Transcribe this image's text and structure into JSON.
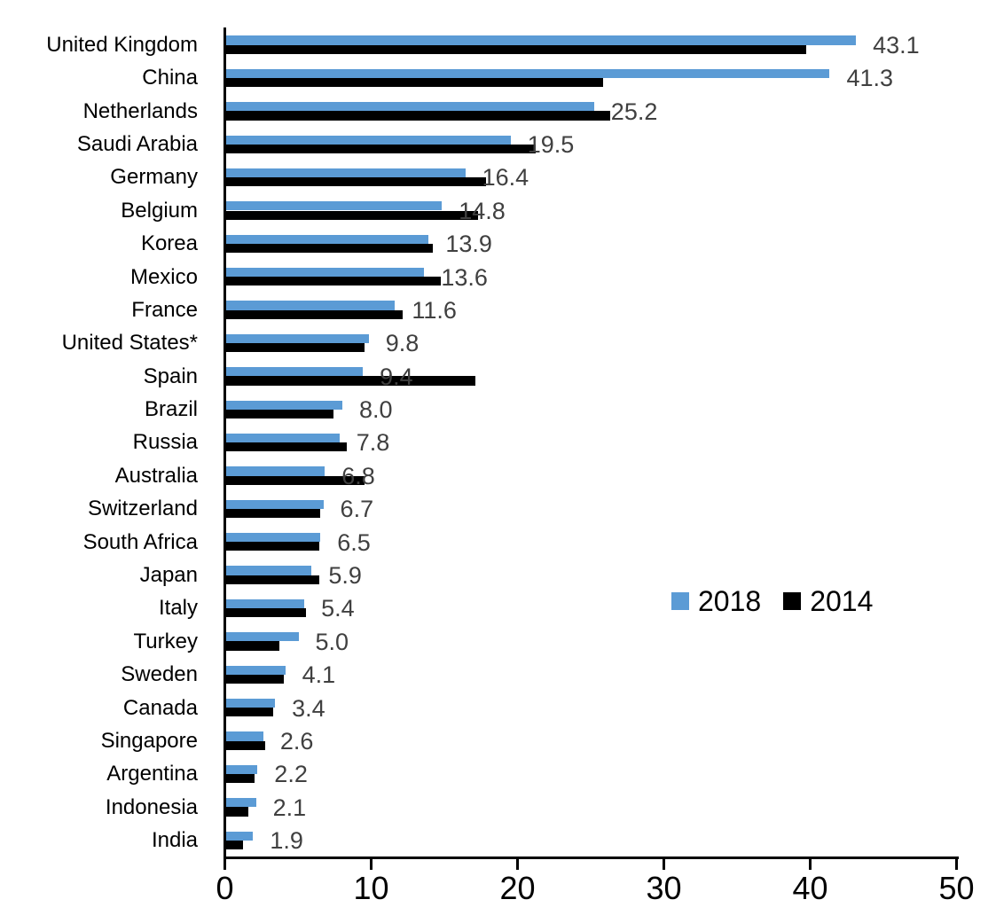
{
  "chart_data": {
    "type": "bar",
    "orientation": "horizontal",
    "title": "",
    "xlabel": "",
    "ylabel": "",
    "xlim": [
      0,
      50
    ],
    "x_ticks": [
      "0",
      "10",
      "20",
      "30",
      "40",
      "50"
    ],
    "grid": false,
    "legend_position": "middle-right",
    "categories": [
      "United Kingdom",
      "China",
      "Netherlands",
      "Saudi Arabia",
      "Germany",
      "Belgium",
      "Korea",
      "Mexico",
      "France",
      "United States*",
      "Spain",
      "Brazil",
      "Russia",
      "Australia",
      "Switzerland",
      "South Africa",
      "Japan",
      "Italy",
      "Turkey",
      "Sweden",
      "Canada",
      "Singapore",
      "Argentina",
      "Indonesia",
      "India"
    ],
    "series": [
      {
        "name": "2018",
        "color": "#5B9BD5",
        "values": [
          43.1,
          41.3,
          25.2,
          19.5,
          16.4,
          14.8,
          13.9,
          13.6,
          11.6,
          9.8,
          9.4,
          8.0,
          7.8,
          6.8,
          6.7,
          6.5,
          5.9,
          5.4,
          5.0,
          4.1,
          3.4,
          2.6,
          2.2,
          2.1,
          1.9
        ],
        "data_labels": [
          "43.1",
          "41.3",
          "25.2",
          "19.5",
          "16.4",
          "14.8",
          "13.9",
          "13.6",
          "11.6",
          "9.8",
          "9.4",
          "8.0",
          "7.8",
          "6.8",
          "6.7",
          "6.5",
          "5.9",
          "5.4",
          "5.0",
          "4.1",
          "3.4",
          "2.6",
          "2.2",
          "2.1",
          "1.9"
        ]
      },
      {
        "name": "2014",
        "color": "#000000",
        "values_estimated_from_axis": true,
        "values": [
          39.7,
          25.8,
          26.3,
          21.2,
          17.8,
          17.3,
          14.2,
          14.7,
          12.1,
          9.5,
          17.1,
          7.4,
          8.3,
          9.5,
          6.5,
          6.4,
          6.4,
          5.5,
          3.7,
          4.0,
          3.3,
          2.7,
          2.0,
          1.6,
          1.2
        ],
        "data_labels": []
      }
    ]
  },
  "legend": {
    "items": [
      {
        "label": "2018",
        "color": "#5B9BD5"
      },
      {
        "label": "2014",
        "color": "#000000"
      }
    ]
  },
  "colors": {
    "background": "#FFFFFF",
    "axis": "#000000",
    "data_label_text": "#404040",
    "category_text": "#000000"
  }
}
